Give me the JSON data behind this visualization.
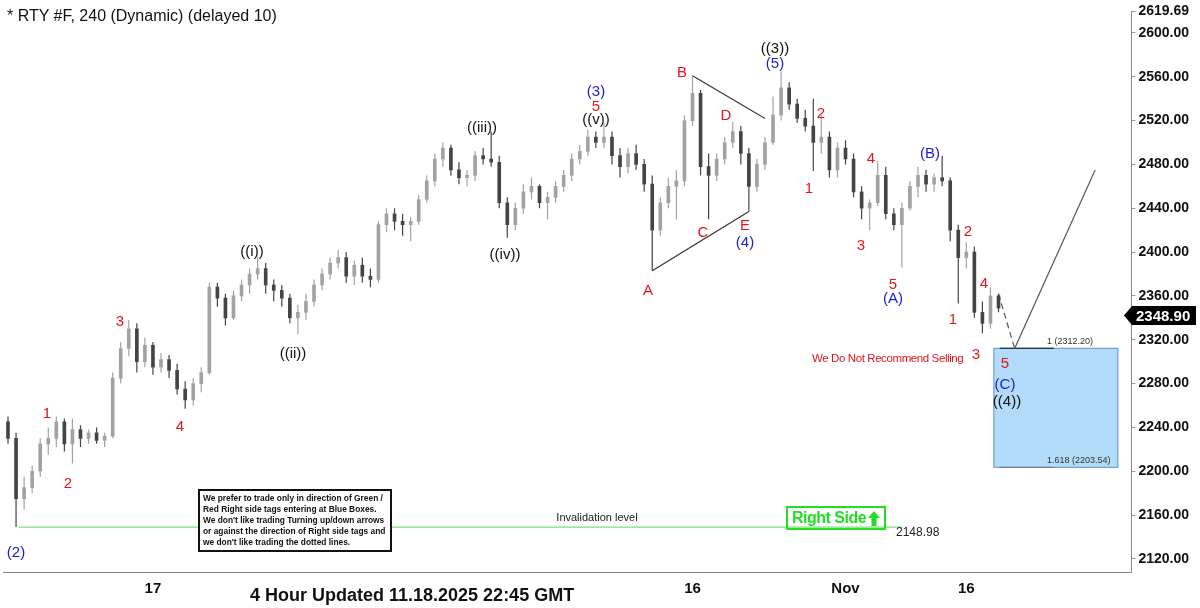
{
  "chart_data": {
    "type": "candlestick",
    "title": "* RTY #F, 240 (Dynamic) (delayed 10)",
    "categories": [
      null,
      null,
      null,
      null,
      null,
      null,
      null,
      null,
      null,
      null,
      null,
      null,
      null,
      null,
      null,
      null,
      null,
      null,
      "17",
      null,
      null,
      null,
      null,
      null,
      null,
      null,
      null,
      null,
      null,
      null,
      null,
      null,
      null,
      null,
      null,
      null,
      null,
      null,
      null,
      null,
      null,
      null,
      null,
      null,
      null,
      null,
      null,
      null,
      null,
      null,
      null,
      null,
      null,
      null,
      null,
      null,
      null,
      null,
      null,
      null,
      null,
      null,
      null,
      null,
      null,
      null,
      null,
      null,
      null,
      null,
      null,
      null,
      null,
      null,
      null,
      null,
      null,
      null,
      null,
      null,
      null,
      null,
      null,
      null,
      null,
      "16",
      null,
      null,
      null,
      null,
      null,
      null,
      null,
      null,
      null,
      null,
      null,
      null,
      null,
      null,
      null,
      null,
      null,
      null,
      "Nov",
      null,
      null,
      null,
      null,
      null,
      null,
      null,
      null,
      null,
      null,
      null,
      null,
      null,
      null,
      "16",
      null,
      null,
      null,
      null,
      null,
      null,
      null,
      null,
      null,
      null,
      null,
      null,
      null,
      null,
      null,
      null,
      null,
      null,
      null,
      null
    ],
    "ylim": [
      2108,
      2619.69
    ],
    "yticks": [
      {
        "value": 2120,
        "label": "2120.00"
      },
      {
        "value": 2160,
        "label": "2160.00"
      },
      {
        "value": 2200,
        "label": "2200.00"
      },
      {
        "value": 2240,
        "label": "2240.00"
      },
      {
        "value": 2280,
        "label": "2280.00"
      },
      {
        "value": 2320,
        "label": "2320.00"
      },
      {
        "value": 2360,
        "label": "2360.00"
      },
      {
        "value": 2400,
        "label": "2400.00"
      },
      {
        "value": 2440,
        "label": "2440.00"
      },
      {
        "value": 2480,
        "label": "2480.00"
      },
      {
        "value": 2520,
        "label": "2520.00"
      },
      {
        "value": 2560,
        "label": "2560.00"
      },
      {
        "value": 2600,
        "label": "2600.00"
      },
      {
        "value": 2619.69,
        "label": "2619.69"
      }
    ],
    "grid": false,
    "series": [
      {
        "colors": [
          "#444444",
          "#444444",
          "#a2a2a2",
          "#a2a2a2",
          "#a2a2a2",
          "#a2a2a2",
          "#a2a2a2",
          "#444444",
          "#a2a2a2",
          "#444444",
          "#a2a2a2",
          "#444444",
          "#a2a2a2",
          "#a2a2a2",
          "#a2a2a2",
          "#a2a2a2",
          "#444444",
          "#a2a2a2",
          "#444444",
          "#a2a2a2",
          "#444444",
          "#444444",
          "#444444",
          "#a2a2a2",
          "#a2a2a2",
          "#a2a2a2",
          "#444444",
          "#444444",
          "#a2a2a2",
          "#a2a2a2",
          "#a2a2a2",
          "#a2a2a2",
          "#444444",
          "#444444",
          "#444444",
          "#444444",
          "#a2a2a2",
          "#a2a2a2",
          "#a2a2a2",
          "#a2a2a2",
          "#a2a2a2",
          "#a2a2a2",
          "#444444",
          "#a2a2a2",
          "#444444",
          "#444444",
          "#a2a2a2",
          "#a2a2a2",
          "#444444",
          "#444444",
          "#a2a2a2",
          "#a2a2a2",
          "#a2a2a2",
          "#a2a2a2",
          "#a2a2a2",
          "#444444",
          "#444444",
          "#a2a2a2",
          "#a2a2a2",
          "#444444",
          "#444444",
          "#444444",
          "#444444",
          "#a2a2a2",
          "#a2a2a2",
          "#a2a2a2",
          "#444444",
          "#a2a2a2",
          "#a2a2a2",
          "#a2a2a2",
          "#a2a2a2",
          "#a2a2a2",
          "#a2a2a2",
          "#444444",
          "#a2a2a2",
          "#444444",
          "#444444",
          "#a2a2a2",
          "#444444",
          "#444444",
          "#444444",
          "#a2a2a2",
          "#a2a2a2",
          "#a2a2a2",
          "#a2a2a2",
          "#a2a2a2",
          "#444444",
          "#444444",
          "#a2a2a2",
          "#a2a2a2",
          "#a2a2a2",
          "#444444",
          "#444444",
          "#a2a2a2",
          "#a2a2a2",
          "#a2a2a2",
          "#a2a2a2",
          "#444444",
          "#444444",
          "#444444",
          "#444444",
          "#a2a2a2",
          "#444444",
          "#a2a2a2",
          "#444444",
          "#444444",
          "#444444",
          "#a2a2a2",
          "#a2a2a2",
          "#444444",
          "#444444",
          "#a2a2a2",
          "#a2a2a2",
          "#a2a2a2",
          "#444444",
          "#a2a2a2",
          "#444444",
          "#444444",
          "#444444",
          "#a2a2a2",
          "#444444",
          "#444444",
          "#a2a2a2",
          "#444444",
          null,
          null,
          null,
          null,
          null,
          null,
          null,
          null,
          null,
          null,
          null,
          null,
          null,
          null,
          null,
          null
        ],
        "ohlc": [
          [
            2245,
            2250,
            2225,
            2230
          ],
          [
            2230,
            2235,
            2148.98,
            2175
          ],
          [
            2175,
            2195,
            2165,
            2185
          ],
          [
            2185,
            2205,
            2180,
            2200
          ],
          [
            2200,
            2230,
            2195,
            2225
          ],
          [
            2225,
            2240,
            2215,
            2230
          ],
          [
            2230,
            2250,
            2222,
            2245
          ],
          [
            2245,
            2248,
            2218,
            2225
          ],
          [
            2225,
            2248,
            2207,
            2238
          ],
          [
            2238,
            2242,
            2222,
            2230
          ],
          [
            2230,
            2238,
            2225,
            2235
          ],
          [
            2235,
            2240,
            2225,
            2228
          ],
          [
            2228,
            2235,
            2222,
            2232
          ],
          [
            2232,
            2290,
            2230,
            2285
          ],
          [
            2285,
            2318,
            2280,
            2312
          ],
          [
            2312,
            2338,
            2305,
            2330
          ],
          [
            2330,
            2335,
            2290,
            2300
          ],
          [
            2300,
            2322,
            2295,
            2315
          ],
          [
            2315,
            2318,
            2288,
            2295
          ],
          [
            2295,
            2308,
            2290,
            2302
          ],
          [
            2302,
            2306,
            2285,
            2292
          ],
          [
            2292,
            2298,
            2270,
            2275
          ],
          [
            2275,
            2282,
            2257,
            2265
          ],
          [
            2265,
            2285,
            2260,
            2280
          ],
          [
            2280,
            2295,
            2272,
            2290
          ],
          [
            2290,
            2372,
            2288,
            2368
          ],
          [
            2368,
            2372,
            2350,
            2358
          ],
          [
            2358,
            2362,
            2333,
            2340
          ],
          [
            2340,
            2365,
            2338,
            2360
          ],
          [
            2360,
            2375,
            2355,
            2370
          ],
          [
            2370,
            2385,
            2362,
            2380
          ],
          [
            2380,
            2396,
            2375,
            2385
          ],
          [
            2385,
            2390,
            2362,
            2370
          ],
          [
            2370,
            2375,
            2355,
            2365
          ],
          [
            2365,
            2370,
            2350,
            2358
          ],
          [
            2358,
            2362,
            2335,
            2340
          ],
          [
            2340,
            2352,
            2325,
            2345
          ],
          [
            2345,
            2362,
            2338,
            2355
          ],
          [
            2355,
            2375,
            2350,
            2370
          ],
          [
            2370,
            2385,
            2365,
            2380
          ],
          [
            2380,
            2395,
            2375,
            2390
          ],
          [
            2390,
            2402,
            2385,
            2395
          ],
          [
            2395,
            2400,
            2372,
            2378
          ],
          [
            2378,
            2392,
            2370,
            2388
          ],
          [
            2388,
            2395,
            2372,
            2378
          ],
          [
            2378,
            2385,
            2368,
            2375
          ],
          [
            2375,
            2428,
            2372,
            2425
          ],
          [
            2425,
            2440,
            2418,
            2435
          ],
          [
            2435,
            2440,
            2420,
            2428
          ],
          [
            2428,
            2435,
            2415,
            2425
          ],
          [
            2425,
            2432,
            2410,
            2428
          ],
          [
            2428,
            2452,
            2425,
            2448
          ],
          [
            2448,
            2470,
            2445,
            2465
          ],
          [
            2465,
            2490,
            2460,
            2485
          ],
          [
            2485,
            2500,
            2478,
            2495
          ],
          [
            2495,
            2498,
            2470,
            2475
          ],
          [
            2475,
            2482,
            2462,
            2468
          ],
          [
            2468,
            2475,
            2460,
            2470
          ],
          [
            2470,
            2492,
            2465,
            2488
          ],
          [
            2488,
            2495,
            2480,
            2485
          ],
          [
            2485,
            2510,
            2478,
            2482
          ],
          [
            2482,
            2488,
            2440,
            2445
          ],
          [
            2445,
            2450,
            2413,
            2425
          ],
          [
            2425,
            2445,
            2420,
            2440
          ],
          [
            2440,
            2462,
            2435,
            2455
          ],
          [
            2455,
            2468,
            2448,
            2460
          ],
          [
            2460,
            2462,
            2440,
            2445
          ],
          [
            2445,
            2455,
            2430,
            2450
          ],
          [
            2450,
            2465,
            2445,
            2460
          ],
          [
            2460,
            2475,
            2455,
            2470
          ],
          [
            2470,
            2490,
            2465,
            2485
          ],
          [
            2485,
            2498,
            2480,
            2492
          ],
          [
            2492,
            2512,
            2488,
            2505
          ],
          [
            2505,
            2510,
            2495,
            2500
          ],
          [
            2500,
            2518,
            2495,
            2505
          ],
          [
            2505,
            2510,
            2480,
            2488
          ],
          [
            2488,
            2495,
            2468,
            2478
          ],
          [
            2478,
            2495,
            2472,
            2490
          ],
          [
            2490,
            2498,
            2475,
            2480
          ],
          [
            2480,
            2485,
            2455,
            2462
          ],
          [
            2462,
            2470,
            2383,
            2420
          ],
          [
            2420,
            2450,
            2415,
            2445
          ],
          [
            2445,
            2468,
            2440,
            2460
          ],
          [
            2460,
            2475,
            2430,
            2465
          ],
          [
            2465,
            2525,
            2460,
            2520
          ],
          [
            2520,
            2561,
            2515,
            2545
          ],
          [
            2545,
            2548,
            2470,
            2478
          ],
          [
            2478,
            2490,
            2430,
            2470
          ],
          [
            2470,
            2490,
            2465,
            2485
          ],
          [
            2485,
            2505,
            2480,
            2500
          ],
          [
            2500,
            2519,
            2495,
            2510
          ],
          [
            2510,
            2515,
            2480,
            2490
          ],
          [
            2490,
            2495,
            2437,
            2460
          ],
          [
            2460,
            2485,
            2455,
            2480
          ],
          [
            2480,
            2505,
            2475,
            2500
          ],
          [
            2500,
            2542,
            2498,
            2525
          ],
          [
            2525,
            2565,
            2520,
            2550
          ],
          [
            2550,
            2555,
            2530,
            2535
          ],
          [
            2535,
            2540,
            2518,
            2522
          ],
          [
            2522,
            2530,
            2510,
            2515
          ],
          [
            2515,
            2540,
            2474,
            2500
          ],
          [
            2500,
            2525,
            2490,
            2505
          ],
          [
            2505,
            2510,
            2468,
            2475
          ],
          [
            2475,
            2500,
            2468,
            2495
          ],
          [
            2495,
            2502,
            2480,
            2485
          ],
          [
            2485,
            2490,
            2450,
            2455
          ],
          [
            2455,
            2460,
            2430,
            2440
          ],
          [
            2440,
            2448,
            2420,
            2445
          ],
          [
            2445,
            2483,
            2442,
            2470
          ],
          [
            2470,
            2478,
            2430,
            2435
          ],
          [
            2435,
            2440,
            2420,
            2425
          ],
          [
            2425,
            2445,
            2386,
            2440
          ],
          [
            2440,
            2465,
            2438,
            2460
          ],
          [
            2460,
            2478,
            2450,
            2470
          ],
          [
            2470,
            2475,
            2455,
            2462
          ],
          [
            2462,
            2472,
            2455,
            2468
          ],
          [
            2468,
            2488,
            2460,
            2465
          ],
          [
            2465,
            2468,
            2410,
            2420
          ],
          [
            2420,
            2425,
            2353,
            2395
          ],
          [
            2395,
            2409,
            2385,
            2400
          ],
          [
            2400,
            2405,
            2340,
            2345
          ],
          [
            2345,
            2355,
            2326,
            2335
          ],
          [
            2335,
            2368,
            2330,
            2360
          ],
          [
            2360,
            2362,
            2345,
            2348.9
          ],
          null,
          null,
          null,
          null,
          null,
          null,
          null,
          null,
          null,
          null,
          null,
          null,
          null,
          null,
          null,
          null
        ]
      },
      {
        "type": "line",
        "color": "#333333",
        "line_style": "solid",
        "values": [
          null,
          null,
          null,
          null,
          null,
          null,
          null,
          null,
          null,
          null,
          null,
          null,
          null,
          null,
          null,
          null,
          null,
          null,
          null,
          null,
          null,
          null,
          null,
          null,
          null,
          null,
          null,
          null,
          null,
          null,
          null,
          null,
          null,
          null,
          null,
          null,
          null,
          null,
          null,
          null,
          null,
          null,
          null,
          null,
          null,
          null,
          null,
          null,
          null,
          null,
          null,
          null,
          null,
          null,
          null,
          null,
          null,
          null,
          null,
          null,
          null,
          null,
          null,
          null,
          null,
          null,
          null,
          null,
          null,
          null,
          null,
          null,
          null,
          null,
          null,
          null,
          null,
          null,
          null,
          null,
          2383,
          null,
          null,
          null,
          null,
          null,
          null,
          null,
          null,
          null,
          null,
          null,
          2437,
          null,
          null,
          null,
          null,
          null,
          null,
          null,
          null,
          null,
          null,
          null,
          null,
          null,
          null,
          null,
          null,
          null,
          null,
          null,
          null,
          null,
          null,
          null,
          null,
          null,
          null,
          null,
          null,
          null,
          null,
          null,
          null,
          null,
          null,
          null,
          null,
          null,
          null,
          null,
          null,
          null,
          null,
          null,
          null,
          null,
          null,
          null
        ]
      },
      {
        "type": "line",
        "color": "#333333",
        "line_style": "solid",
        "values": [
          null,
          null,
          null,
          null,
          null,
          null,
          null,
          null,
          null,
          null,
          null,
          null,
          null,
          null,
          null,
          null,
          null,
          null,
          null,
          null,
          null,
          null,
          null,
          null,
          null,
          null,
          null,
          null,
          null,
          null,
          null,
          null,
          null,
          null,
          null,
          null,
          null,
          null,
          null,
          null,
          null,
          null,
          null,
          null,
          null,
          null,
          null,
          null,
          null,
          null,
          null,
          null,
          null,
          null,
          null,
          null,
          null,
          null,
          null,
          null,
          null,
          null,
          null,
          null,
          null,
          null,
          null,
          null,
          null,
          null,
          null,
          null,
          null,
          null,
          null,
          null,
          null,
          null,
          null,
          null,
          null,
          null,
          null,
          null,
          null,
          2561,
          null,
          null,
          null,
          null,
          null,
          null,
          null,
          null,
          2522,
          null,
          null,
          null,
          null,
          null,
          null,
          null,
          null,
          null,
          null,
          null,
          null,
          null,
          null,
          null,
          null,
          null,
          null,
          null,
          null,
          null,
          null,
          null,
          null,
          null,
          null,
          null,
          null,
          null,
          null,
          null,
          null,
          null,
          null,
          null,
          null,
          null,
          null,
          null,
          null,
          null,
          null,
          null,
          null,
          null
        ]
      },
      {
        "type": "line",
        "color": "#555555",
        "line_style": "dashed",
        "values": [
          null,
          null,
          null,
          null,
          null,
          null,
          null,
          null,
          null,
          null,
          null,
          null,
          null,
          null,
          null,
          null,
          null,
          null,
          null,
          null,
          null,
          null,
          null,
          null,
          null,
          null,
          null,
          null,
          null,
          null,
          null,
          null,
          null,
          null,
          null,
          null,
          null,
          null,
          null,
          null,
          null,
          null,
          null,
          null,
          null,
          null,
          null,
          null,
          null,
          null,
          null,
          null,
          null,
          null,
          null,
          null,
          null,
          null,
          null,
          null,
          null,
          null,
          null,
          null,
          null,
          null,
          null,
          null,
          null,
          null,
          null,
          null,
          null,
          null,
          null,
          null,
          null,
          null,
          null,
          null,
          null,
          null,
          null,
          null,
          null,
          null,
          null,
          null,
          null,
          null,
          null,
          null,
          null,
          null,
          null,
          null,
          null,
          null,
          null,
          null,
          null,
          null,
          null,
          null,
          null,
          null,
          null,
          null,
          null,
          null,
          null,
          null,
          null,
          null,
          null,
          null,
          null,
          null,
          null,
          null,
          null,
          null,
          null,
          2362,
          null,
          2312,
          null,
          null,
          null,
          null,
          null,
          null,
          null,
          null,
          null,
          null,
          null,
          null,
          null,
          null
        ]
      },
      {
        "type": "line",
        "color": "#555555",
        "line_style": "solid",
        "values": [
          null,
          null,
          null,
          null,
          null,
          null,
          null,
          null,
          null,
          null,
          null,
          null,
          null,
          null,
          null,
          null,
          null,
          null,
          null,
          null,
          null,
          null,
          null,
          null,
          null,
          null,
          null,
          null,
          null,
          null,
          null,
          null,
          null,
          null,
          null,
          null,
          null,
          null,
          null,
          null,
          null,
          null,
          null,
          null,
          null,
          null,
          null,
          null,
          null,
          null,
          null,
          null,
          null,
          null,
          null,
          null,
          null,
          null,
          null,
          null,
          null,
          null,
          null,
          null,
          null,
          null,
          null,
          null,
          null,
          null,
          null,
          null,
          null,
          null,
          null,
          null,
          null,
          null,
          null,
          null,
          null,
          null,
          null,
          null,
          null,
          null,
          null,
          null,
          null,
          null,
          null,
          null,
          null,
          null,
          null,
          null,
          null,
          null,
          null,
          null,
          null,
          null,
          null,
          null,
          null,
          null,
          null,
          null,
          null,
          null,
          null,
          null,
          null,
          null,
          null,
          null,
          null,
          null,
          null,
          null,
          null,
          null,
          null,
          null,
          null,
          2312,
          null,
          null,
          null,
          null,
          null,
          null,
          null,
          null,
          null,
          2475,
          null,
          null,
          null,
          null
        ]
      }
    ],
    "marker": "none",
    "ref_lines": [
      {
        "axis": "y",
        "value": 2148.98,
        "label": "Invalidation level",
        "color": "#7ee07e"
      }
    ],
    "bands": [
      {
        "axis": "y",
        "from": 2203.54,
        "to": 2312.2,
        "color": "#b3dcfa"
      }
    ],
    "annotations": [
      "We prefer to trade only in direction of Green / Red Right side tags entering at Blue Boxes. We don't like trading Turning up/down arrows or against the direction of Right side tags and we don't like trading the dotted lines.",
      "We Do Not Recommend Selling",
      "Right Side",
      "4 Hour Updated 11.18.2025 22:45 GMT",
      "(2)",
      "1",
      "2",
      "3",
      "4",
      "((i))",
      "((ii))",
      "((iii))",
      "((iv))",
      "(3)",
      "5",
      "((v))",
      "A",
      "B",
      "C",
      "D",
      "E",
      "(4)",
      "((3))",
      "(5)",
      "1",
      "2",
      "3",
      "4",
      "5",
      "(A)",
      "(B)",
      "2",
      "1",
      "4",
      "3",
      {
        "text": "5",
        "y": 2312
      },
      "(C)",
      "((4))",
      {
        "text": "1 (2312.20)",
        "y": 2312.2
      },
      {
        "text": "1.618 (2203.54)",
        "y": 2203.54
      },
      "2148.98",
      "2348.90"
    ]
  }
}
